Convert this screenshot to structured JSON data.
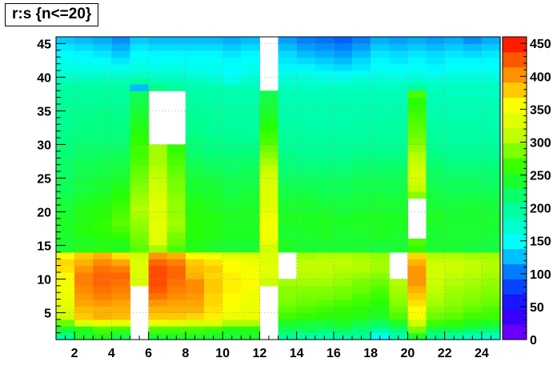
{
  "title": "r:s {n<=20}",
  "chart_data": {
    "type": "heatmap",
    "title": "r:s {n<=20}",
    "xlabel": "",
    "ylabel": "",
    "x_range": [
      1,
      25
    ],
    "y_range": [
      1,
      46
    ],
    "z_range": [
      0,
      460
    ],
    "x_ticks": [
      2,
      4,
      6,
      8,
      10,
      12,
      14,
      16,
      18,
      20,
      22,
      24
    ],
    "y_ticks": [
      5,
      10,
      15,
      20,
      25,
      30,
      35,
      40,
      45
    ],
    "z_ticks": [
      0,
      50,
      100,
      150,
      200,
      250,
      300,
      350,
      400,
      450
    ],
    "grid": true,
    "colorbar": "right",
    "empty_regions": [
      {
        "x": [
          4,
          5
        ],
        "y": [
          1,
          9
        ]
      },
      {
        "x": [
          5,
          7
        ],
        "y": [
          30,
          38
        ]
      },
      {
        "x": [
          11,
          12
        ],
        "y": [
          1,
          9
        ]
      },
      {
        "x": [
          11,
          12
        ],
        "y": [
          38,
          46
        ]
      },
      {
        "x": [
          12,
          13
        ],
        "y": [
          9,
          13
        ]
      },
      {
        "x": [
          18,
          19
        ],
        "y": [
          9,
          13
        ]
      },
      {
        "x": [
          20,
          21
        ],
        "y": [
          14,
          21
        ]
      }
    ],
    "rows_low_to_high_y": [
      [
        200,
        240,
        250,
        230,
        null,
        240,
        245,
        245,
        240,
        235,
        245,
        null,
        200,
        195,
        190,
        195,
        200,
        150,
        190,
        240,
        205,
        190,
        180,
        175
      ],
      [
        240,
        250,
        270,
        265,
        null,
        270,
        270,
        270,
        265,
        250,
        250,
        null,
        225,
        225,
        220,
        225,
        215,
        200,
        215,
        285,
        230,
        230,
        225,
        220
      ],
      [
        280,
        330,
        340,
        335,
        null,
        340,
        335,
        325,
        330,
        305,
        305,
        null,
        245,
        240,
        240,
        245,
        235,
        225,
        245,
        320,
        265,
        260,
        250,
        245
      ],
      [
        320,
        380,
        390,
        385,
        null,
        380,
        380,
        375,
        365,
        345,
        345,
        null,
        265,
        260,
        255,
        255,
        250,
        245,
        270,
        350,
        280,
        275,
        265,
        265
      ],
      [
        330,
        385,
        390,
        390,
        null,
        390,
        390,
        390,
        370,
        350,
        340,
        null,
        275,
        270,
        265,
        260,
        255,
        250,
        280,
        360,
        290,
        285,
        275,
        270
      ],
      [
        340,
        395,
        400,
        395,
        null,
        400,
        395,
        395,
        375,
        355,
        345,
        null,
        285,
        280,
        275,
        270,
        265,
        255,
        290,
        370,
        300,
        290,
        285,
        280
      ],
      [
        345,
        400,
        410,
        405,
        null,
        415,
        405,
        400,
        375,
        360,
        345,
        null,
        290,
        285,
        285,
        280,
        270,
        265,
        295,
        380,
        305,
        295,
        290,
        285
      ],
      [
        350,
        405,
        415,
        410,
        null,
        425,
        410,
        405,
        380,
        365,
        350,
        null,
        290,
        290,
        290,
        285,
        280,
        270,
        300,
        390,
        310,
        300,
        295,
        290
      ],
      [
        350,
        410,
        420,
        415,
        325,
        430,
        415,
        405,
        380,
        365,
        360,
        315,
        300,
        300,
        300,
        295,
        285,
        280,
        305,
        400,
        315,
        305,
        300,
        295
      ],
      [
        360,
        410,
        420,
        420,
        330,
        430,
        420,
        390,
        375,
        365,
        355,
        330,
        null,
        305,
        305,
        300,
        295,
        290,
        null,
        400,
        320,
        310,
        305,
        300
      ],
      [
        370,
        400,
        415,
        410,
        330,
        430,
        420,
        385,
        380,
        360,
        350,
        335,
        null,
        310,
        310,
        305,
        305,
        300,
        null,
        400,
        320,
        315,
        310,
        305
      ],
      [
        375,
        390,
        405,
        395,
        330,
        420,
        410,
        380,
        370,
        355,
        345,
        330,
        null,
        310,
        310,
        310,
        305,
        300,
        null,
        390,
        315,
        315,
        310,
        305
      ],
      [
        360,
        380,
        390,
        370,
        320,
        400,
        390,
        360,
        350,
        335,
        330,
        330,
        null,
        300,
        305,
        305,
        300,
        295,
        null,
        375,
        305,
        305,
        300,
        300
      ],
      [
        240,
        250,
        255,
        250,
        275,
        300,
        270,
        250,
        245,
        240,
        240,
        320,
        245,
        240,
        240,
        240,
        240,
        235,
        240,
        260,
        240,
        240,
        235,
        235
      ],
      [
        240,
        245,
        250,
        250,
        280,
        330,
        280,
        250,
        245,
        240,
        240,
        340,
        245,
        240,
        240,
        240,
        240,
        240,
        240,
        270,
        240,
        240,
        240,
        235
      ],
      [
        240,
        250,
        255,
        260,
        285,
        335,
        285,
        255,
        250,
        245,
        245,
        350,
        240,
        240,
        245,
        240,
        240,
        245,
        240,
        null,
        240,
        240,
        240,
        235
      ],
      [
        245,
        255,
        260,
        270,
        290,
        335,
        295,
        255,
        250,
        245,
        245,
        350,
        240,
        245,
        245,
        240,
        245,
        245,
        245,
        null,
        240,
        240,
        240,
        240
      ],
      [
        245,
        250,
        260,
        275,
        295,
        335,
        300,
        255,
        250,
        245,
        245,
        350,
        245,
        245,
        245,
        245,
        245,
        245,
        245,
        null,
        245,
        240,
        240,
        240
      ],
      [
        240,
        250,
        255,
        270,
        300,
        330,
        295,
        255,
        250,
        245,
        245,
        345,
        245,
        245,
        245,
        240,
        245,
        245,
        245,
        null,
        245,
        240,
        240,
        240
      ],
      [
        240,
        250,
        255,
        265,
        305,
        335,
        295,
        250,
        245,
        240,
        245,
        335,
        240,
        240,
        240,
        235,
        240,
        240,
        240,
        null,
        240,
        235,
        240,
        235
      ],
      [
        235,
        245,
        250,
        260,
        300,
        330,
        295,
        250,
        245,
        240,
        240,
        330,
        240,
        240,
        235,
        235,
        235,
        240,
        240,
        null,
        235,
        235,
        235,
        235
      ],
      [
        230,
        240,
        245,
        255,
        295,
        325,
        290,
        245,
        240,
        235,
        240,
        330,
        235,
        235,
        230,
        230,
        235,
        235,
        235,
        290,
        235,
        230,
        230,
        230
      ],
      [
        225,
        235,
        240,
        250,
        290,
        320,
        285,
        240,
        240,
        230,
        235,
        330,
        230,
        230,
        225,
        225,
        230,
        230,
        230,
        310,
        230,
        225,
        225,
        225
      ],
      [
        225,
        235,
        240,
        245,
        285,
        315,
        285,
        240,
        235,
        230,
        230,
        325,
        225,
        225,
        225,
        225,
        230,
        230,
        230,
        320,
        225,
        225,
        225,
        220
      ],
      [
        220,
        230,
        235,
        240,
        280,
        310,
        280,
        235,
        230,
        225,
        230,
        320,
        220,
        220,
        220,
        220,
        225,
        225,
        225,
        325,
        225,
        220,
        220,
        220
      ],
      [
        220,
        230,
        230,
        235,
        275,
        305,
        275,
        230,
        225,
        220,
        225,
        310,
        215,
        215,
        215,
        215,
        220,
        220,
        220,
        320,
        220,
        215,
        215,
        215
      ],
      [
        220,
        225,
        230,
        230,
        270,
        300,
        270,
        225,
        220,
        220,
        220,
        300,
        215,
        210,
        210,
        210,
        215,
        215,
        215,
        310,
        215,
        210,
        210,
        210
      ],
      [
        215,
        220,
        225,
        225,
        265,
        300,
        265,
        220,
        215,
        215,
        215,
        290,
        210,
        205,
        205,
        205,
        210,
        210,
        210,
        305,
        210,
        205,
        205,
        205
      ],
      [
        215,
        220,
        220,
        220,
        265,
        300,
        260,
        215,
        210,
        210,
        210,
        280,
        205,
        200,
        200,
        200,
        205,
        205,
        205,
        295,
        205,
        200,
        200,
        200
      ],
      [
        210,
        215,
        215,
        215,
        260,
        null,
        null,
        215,
        210,
        205,
        205,
        270,
        200,
        200,
        200,
        200,
        200,
        200,
        200,
        285,
        200,
        195,
        195,
        195
      ],
      [
        210,
        215,
        215,
        215,
        255,
        null,
        null,
        210,
        205,
        205,
        200,
        265,
        200,
        195,
        195,
        195,
        195,
        200,
        200,
        280,
        200,
        195,
        195,
        195
      ],
      [
        205,
        210,
        210,
        210,
        250,
        null,
        null,
        205,
        200,
        200,
        200,
        255,
        195,
        195,
        195,
        195,
        195,
        195,
        195,
        275,
        195,
        195,
        195,
        190
      ],
      [
        205,
        210,
        210,
        210,
        245,
        null,
        null,
        205,
        200,
        195,
        195,
        250,
        195,
        190,
        190,
        190,
        195,
        195,
        195,
        270,
        195,
        190,
        190,
        190
      ],
      [
        205,
        205,
        210,
        205,
        240,
        null,
        null,
        200,
        200,
        195,
        195,
        245,
        190,
        190,
        190,
        190,
        190,
        190,
        190,
        265,
        190,
        190,
        190,
        190
      ],
      [
        200,
        205,
        205,
        205,
        235,
        null,
        null,
        200,
        195,
        195,
        195,
        240,
        190,
        190,
        190,
        190,
        190,
        190,
        190,
        260,
        190,
        185,
        185,
        185
      ],
      [
        200,
        200,
        200,
        200,
        230,
        null,
        null,
        195,
        195,
        190,
        190,
        235,
        185,
        185,
        185,
        185,
        185,
        185,
        185,
        255,
        185,
        185,
        185,
        185
      ],
      [
        195,
        200,
        200,
        200,
        225,
        null,
        null,
        195,
        190,
        190,
        190,
        230,
        185,
        185,
        185,
        185,
        185,
        185,
        185,
        270,
        185,
        180,
        180,
        180
      ],
      [
        195,
        195,
        195,
        195,
        125,
        210,
        200,
        190,
        190,
        185,
        185,
        null,
        180,
        180,
        180,
        180,
        180,
        180,
        180,
        200,
        180,
        180,
        180,
        180
      ],
      [
        185,
        185,
        185,
        185,
        195,
        185,
        185,
        180,
        175,
        160,
        175,
        null,
        170,
        170,
        165,
        165,
        170,
        170,
        170,
        175,
        170,
        170,
        170,
        170
      ],
      [
        170,
        170,
        170,
        170,
        175,
        170,
        170,
        165,
        160,
        150,
        160,
        null,
        160,
        160,
        155,
        150,
        155,
        160,
        155,
        160,
        155,
        160,
        160,
        160
      ],
      [
        160,
        160,
        155,
        155,
        160,
        160,
        160,
        155,
        155,
        150,
        155,
        null,
        145,
        145,
        140,
        135,
        140,
        150,
        150,
        150,
        145,
        150,
        150,
        150
      ],
      [
        155,
        150,
        150,
        140,
        155,
        150,
        150,
        150,
        150,
        145,
        150,
        null,
        140,
        135,
        130,
        125,
        135,
        145,
        140,
        145,
        140,
        145,
        145,
        145
      ],
      [
        150,
        145,
        140,
        130,
        150,
        145,
        145,
        145,
        145,
        140,
        145,
        null,
        135,
        125,
        120,
        115,
        125,
        140,
        135,
        140,
        135,
        140,
        135,
        140
      ],
      [
        140,
        135,
        130,
        120,
        140,
        135,
        135,
        135,
        135,
        130,
        135,
        null,
        125,
        115,
        110,
        105,
        115,
        130,
        125,
        130,
        125,
        130,
        125,
        130
      ],
      [
        130,
        125,
        120,
        110,
        130,
        125,
        125,
        125,
        125,
        120,
        125,
        null,
        115,
        105,
        100,
        95,
        105,
        120,
        115,
        120,
        115,
        120,
        110,
        120
      ]
    ]
  }
}
